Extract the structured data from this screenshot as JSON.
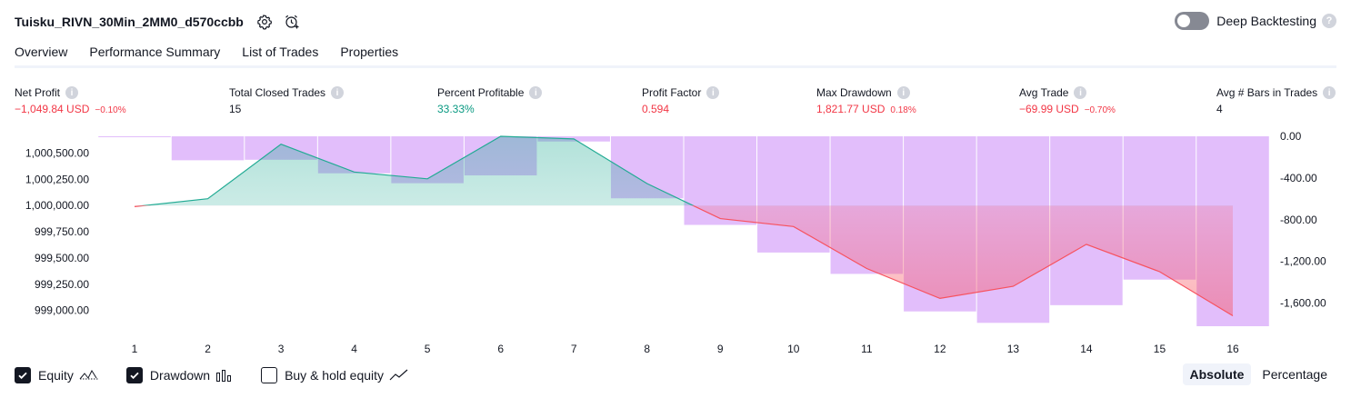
{
  "header": {
    "title": "Tuisku_RIVN_30Min_2MM0_d570ccbb",
    "deep_backtesting_label": "Deep Backtesting",
    "deep_backtesting_on": false,
    "help_glyph": "?"
  },
  "tabs": [
    {
      "label": "Overview",
      "active": true
    },
    {
      "label": "Performance Summary",
      "active": false
    },
    {
      "label": "List of Trades",
      "active": false
    },
    {
      "label": "Properties",
      "active": false
    }
  ],
  "stats": {
    "info_glyph": "i",
    "net_profit": {
      "label": "Net Profit",
      "value": "−1,049.84 USD",
      "sub": "−0.10%",
      "color": "#f23645"
    },
    "total_closed_trades": {
      "label": "Total Closed Trades",
      "value": "15",
      "sub": "",
      "color": "#131722"
    },
    "percent_profitable": {
      "label": "Percent Profitable",
      "value": "33.33%",
      "sub": "",
      "color": "#089981"
    },
    "profit_factor": {
      "label": "Profit Factor",
      "value": "0.594",
      "sub": "",
      "color": "#f23645"
    },
    "max_drawdown": {
      "label": "Max Drawdown",
      "value": "1,821.77 USD",
      "sub": "0.18%",
      "color": "#f23645"
    },
    "avg_trade": {
      "label": "Avg Trade",
      "value": "−69.99 USD",
      "sub": "−0.70%",
      "color": "#f23645"
    },
    "avg_bars": {
      "label": "Avg # Bars in Trades",
      "value": "4",
      "sub": "",
      "color": "#131722"
    }
  },
  "chart_data": {
    "type": "line",
    "x": [
      1,
      2,
      3,
      4,
      5,
      6,
      7,
      8,
      9,
      10,
      11,
      12,
      13,
      14,
      15,
      16
    ],
    "x_tick_labels": [
      "1",
      "2",
      "3",
      "4",
      "5",
      "6",
      "7",
      "8",
      "9",
      "10",
      "11",
      "12",
      "13",
      "14",
      "15",
      "16"
    ],
    "series": [
      {
        "name": "Equity",
        "axis": "left",
        "values": [
          999990,
          1000065,
          1000585,
          1000320,
          1000255,
          1000660,
          1000635,
          1000210,
          999875,
          999800,
          999400,
          999115,
          999230,
          999630,
          999370,
          998950
        ]
      },
      {
        "name": "Drawdown",
        "axis": "right",
        "values": [
          0,
          -230,
          -225,
          -355,
          -450,
          -375,
          -50,
          -595,
          -850,
          -1115,
          -1320,
          -1680,
          -1790,
          -1620,
          -1375,
          -1822
        ]
      }
    ],
    "left_axis": {
      "ticks": [
        "1,000,500.00",
        "1,000,250.00",
        "1,000,000.00",
        "999,750.00",
        "999,500.00",
        "999,250.00",
        "999,000.00"
      ],
      "tick_values": [
        1000500,
        1000250,
        1000000,
        999750,
        999500,
        999250,
        999000
      ],
      "range": [
        998850,
        1000660
      ]
    },
    "right_axis": {
      "ticks": [
        "0.00",
        "-400.00",
        "-800.00",
        "-1,200.00",
        "-1,600.00"
      ],
      "tick_values": [
        0,
        -400,
        -800,
        -1200,
        -1600
      ],
      "range": [
        0,
        -1822
      ]
    },
    "baseline": 1000000,
    "colors": {
      "equity_line": "#22ab94",
      "equity_fill": "#22ab94",
      "loss_line": "#f7525f",
      "loss_fill": "#f7525f",
      "drawdown_bar": "#ce93f8"
    },
    "grid": false
  },
  "legend": {
    "equity": {
      "label": "Equity",
      "checked": true,
      "icon": "equity-line-icon"
    },
    "drawdown": {
      "label": "Drawdown",
      "checked": true,
      "icon": "drawdown-bars-icon"
    },
    "buy_hold": {
      "label": "Buy & hold equity",
      "checked": false,
      "icon": "buy-hold-line-icon"
    }
  },
  "mode": {
    "absolute_label": "Absolute",
    "percentage_label": "Percentage",
    "active": "absolute"
  }
}
